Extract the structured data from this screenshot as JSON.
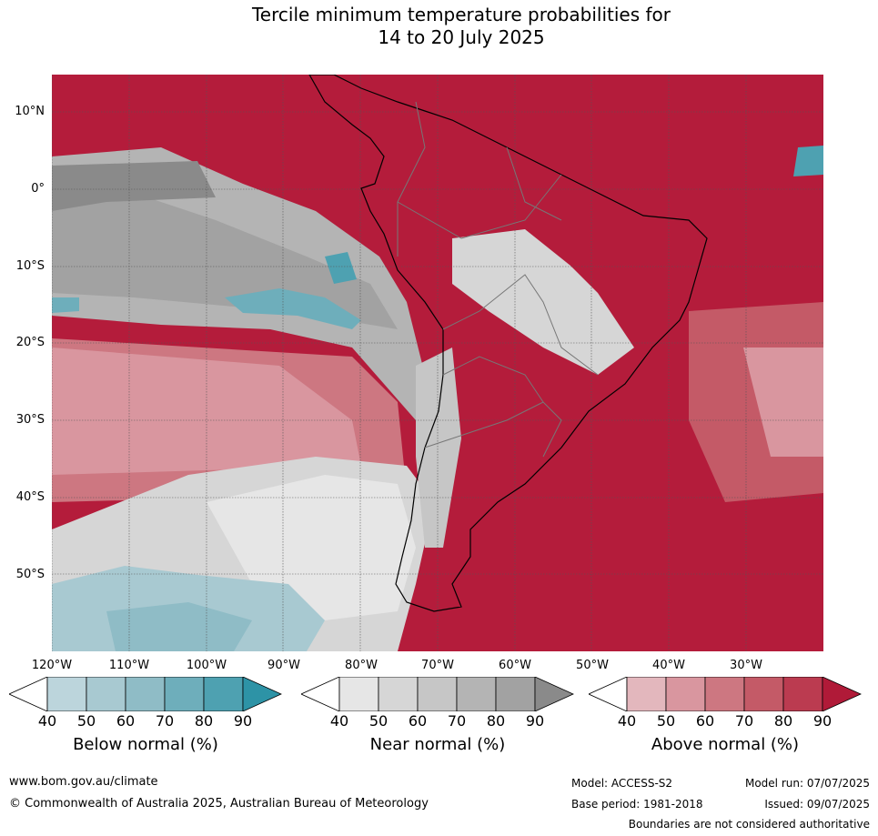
{
  "title": {
    "line1": "Tercile minimum temperature probabilities for",
    "line2": "14 to 20 July 2025"
  },
  "map": {
    "lat_labels": [
      "10°N",
      "0°",
      "10°S",
      "20°S",
      "30°S",
      "40°S",
      "50°S"
    ],
    "lon_labels": [
      "120°W",
      "110°W",
      "100°W",
      "90°W",
      "80°W",
      "70°W",
      "60°W",
      "50°W",
      "40°W",
      "30°W"
    ],
    "region": "South America",
    "gridlines": true
  },
  "legend": {
    "ticks": [
      "40",
      "50",
      "60",
      "70",
      "80",
      "90"
    ],
    "below": {
      "label": "Below normal (%)",
      "colors": [
        "#ffffff",
        "#bcd5dc",
        "#a8c9d1",
        "#8fbcc6",
        "#6eaebb",
        "#4ea1b1",
        "#2d93a6"
      ]
    },
    "near": {
      "label": "Near normal (%)",
      "colors": [
        "#ffffff",
        "#e6e6e6",
        "#d6d6d6",
        "#c6c6c6",
        "#b4b4b4",
        "#a2a2a2",
        "#8a8a8a"
      ]
    },
    "above": {
      "label": "Above normal (%)",
      "colors": [
        "#ffffff",
        "#e3b7bd",
        "#d9969f",
        "#cd7781",
        "#c45a67",
        "#bb3b50",
        "#b01a38"
      ]
    }
  },
  "footer": {
    "website": "www.bom.gov.au/climate",
    "copyright": "© Commonwealth of Australia 2025, Australian Bureau of Meteorology",
    "model": "Model: ACCESS-S2",
    "model_run": "Model run: 07/07/2025",
    "base_period": "Base period: 1981-2018",
    "issued": "Issued: 09/07/2025",
    "disclaimer": "Boundaries are not considered authoritative"
  }
}
